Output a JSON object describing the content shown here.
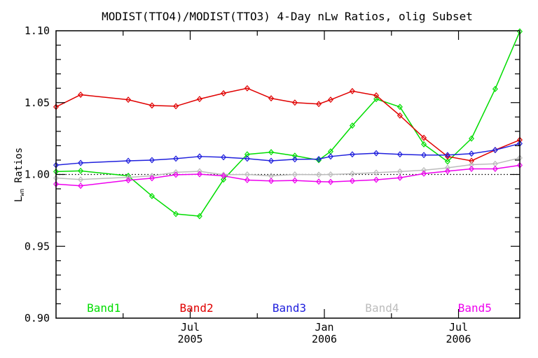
{
  "chart_data": {
    "type": "line",
    "title": "MODIST(TTO4)/MODIST(TTO3) 4-Day nLw Ratios, olig Subset",
    "ylabel": {
      "prefix": "L",
      "subscript": "wn",
      "suffix": " Ratios"
    },
    "xlabel": "",
    "ylim": [
      0.9,
      1.1
    ],
    "y_major_tick_step": 0.05,
    "y_minor_tick_step": 0.01,
    "y_tick_labels": [
      "0.90",
      "0.95",
      "1.00",
      "1.05",
      "1.10"
    ],
    "x_axis_unit": "months since Jan 2005",
    "xlim": [
      0,
      20.74
    ],
    "x_major_ticks": [
      {
        "month": 6,
        "line1": "Jul",
        "line2": "2005"
      },
      {
        "month": 12,
        "line1": "Jan",
        "line2": "2006"
      },
      {
        "month": 18,
        "line1": "Jul",
        "line2": "2006"
      }
    ],
    "x_minor_tick_months": [
      3,
      9,
      15
    ],
    "reference_line_y": 1.0,
    "grid": "off",
    "legend_position": "inside-bottom",
    "axis_color": "#000000",
    "x_months": [
      0,
      1.1,
      3.23,
      4.29,
      5.36,
      6.42,
      7.49,
      8.55,
      9.62,
      10.68,
      11.75,
      12.28,
      13.25,
      14.32,
      15.38,
      16.45,
      17.51,
      18.58,
      19.64,
      20.74
    ],
    "series": [
      {
        "name": "Band1",
        "color": "#00dd00",
        "values": [
          1.002,
          1.0025,
          0.999,
          0.985,
          0.9725,
          0.971,
          0.9965,
          1.014,
          1.0155,
          1.013,
          1.01,
          1.016,
          1.034,
          1.0525,
          1.047,
          1.021,
          1.009,
          1.025,
          1.0595,
          1.0995
        ]
      },
      {
        "name": "Band2",
        "color": "#e00000",
        "values": [
          1.047,
          1.0555,
          1.052,
          1.048,
          1.0475,
          1.0525,
          1.0565,
          1.06,
          1.053,
          1.05,
          1.049,
          1.052,
          1.058,
          1.055,
          1.041,
          1.0255,
          1.0125,
          1.0095,
          1.017,
          1.024
        ]
      },
      {
        "name": "Band3",
        "color": "#2020dd",
        "values": [
          1.0065,
          1.008,
          1.0095,
          1.01,
          1.011,
          1.0125,
          1.012,
          1.011,
          1.0095,
          1.0105,
          1.0107,
          1.0125,
          1.014,
          1.0148,
          1.014,
          1.0135,
          1.0135,
          1.0145,
          1.017,
          1.0215
        ]
      },
      {
        "name": "Band4",
        "color": "#bcbcbc",
        "values": [
          0.9975,
          0.9965,
          0.998,
          0.999,
          1.0015,
          1.0022,
          0.9998,
          1.0,
          0.999,
          1.0,
          0.9998,
          1.0,
          1.0005,
          1.0013,
          1.002,
          1.003,
          1.0046,
          1.0068,
          1.0074,
          1.0115
        ]
      },
      {
        "name": "Band5",
        "color": "#ee00ee",
        "values": [
          0.9933,
          0.9921,
          0.996,
          0.9974,
          0.9998,
          1.0002,
          0.999,
          0.9961,
          0.9955,
          0.9958,
          0.995,
          0.9948,
          0.9955,
          0.9963,
          0.9977,
          1.0006,
          1.0023,
          1.0039,
          1.0039,
          1.0064
        ]
      }
    ]
  }
}
